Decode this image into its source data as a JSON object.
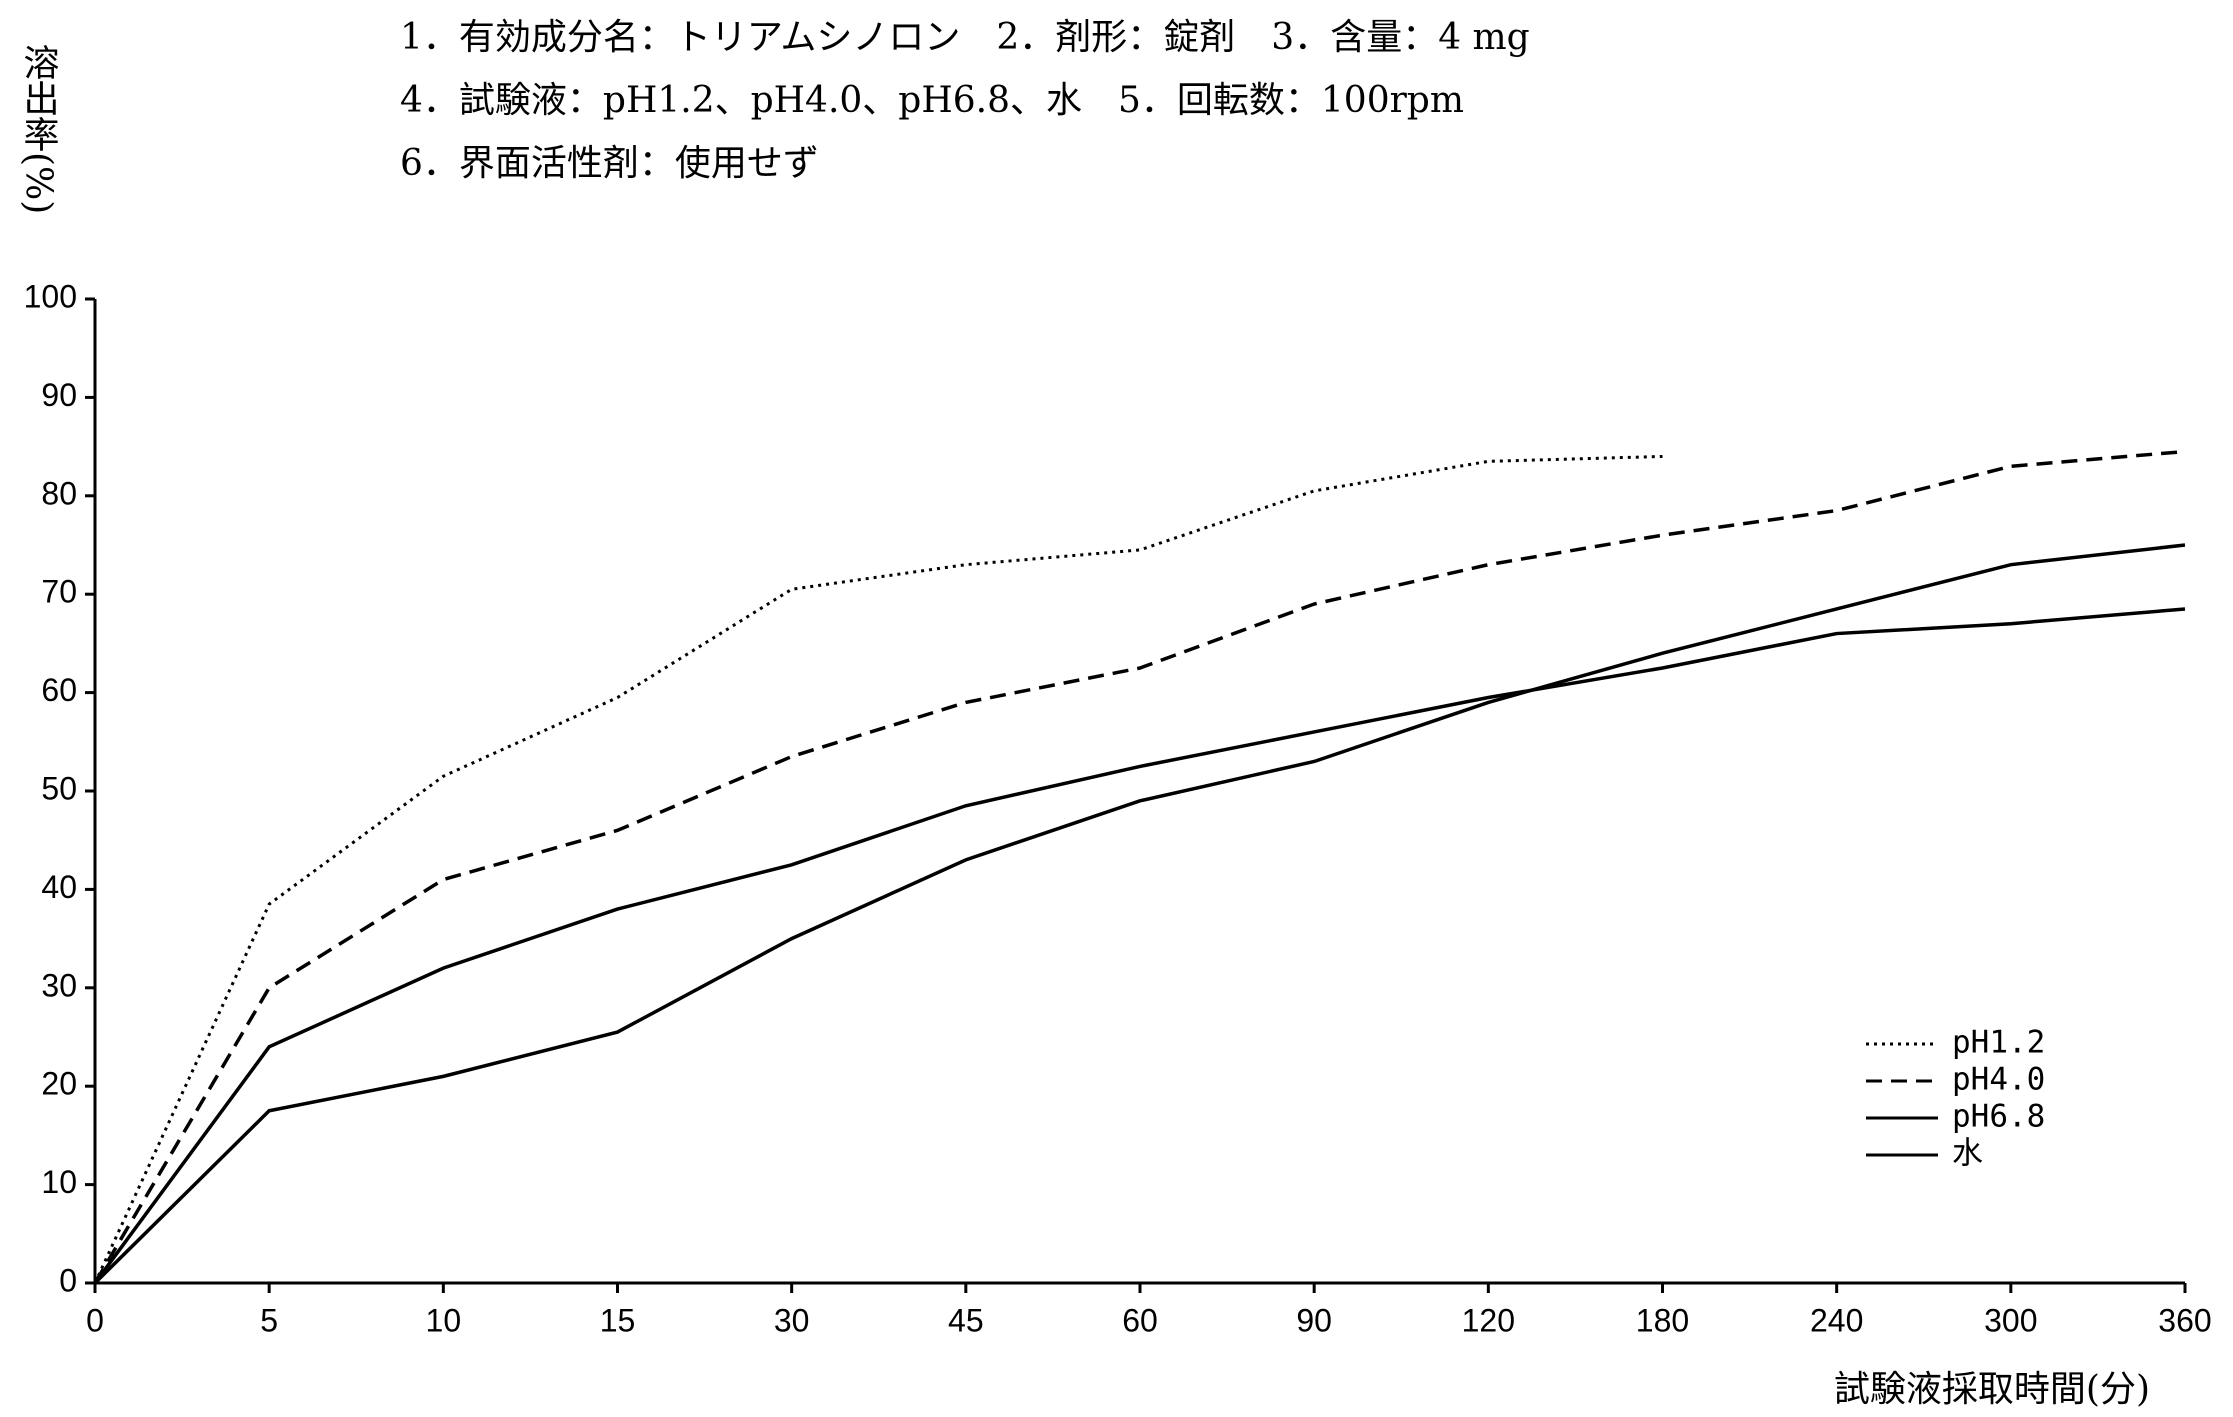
{
  "chart_data": {
    "type": "line",
    "title_lines": [
      "1．有効成分名：トリアムシノロン　2．剤形：錠剤　3．含量：4 mg",
      "4．試験液：pH1.2、pH4.0、pH6.8、水　5．回転数：100rpm",
      "6．界面活性剤：使用せず"
    ],
    "y_label": "溶出率(%)",
    "x_label": "試験液採取時間(分)",
    "categories": [
      "0",
      "5",
      "10",
      "15",
      "30",
      "45",
      "60",
      "90",
      "120",
      "180",
      "240",
      "300",
      "360"
    ],
    "series": [
      {
        "name": "pH1.2",
        "color": "#000000",
        "style": "dotted",
        "values": [
          0,
          38.5,
          51.5,
          59.5,
          70.5,
          73,
          74.5,
          80.5,
          83.5,
          84,
          null,
          null,
          null
        ]
      },
      {
        "name": "pH4.0",
        "color": "#000000",
        "style": "dashed",
        "values": [
          0,
          30,
          41,
          46,
          53.5,
          59,
          62.5,
          69,
          73,
          76,
          78.5,
          83,
          84.5
        ]
      },
      {
        "name": "pH6.8",
        "color": "#000000",
        "style": "solid",
        "values": [
          0,
          24,
          32,
          38,
          42.5,
          48.5,
          52.5,
          56,
          59.5,
          62.5,
          66,
          67,
          68.5
        ]
      },
      {
        "name": "水",
        "color": "#000000",
        "style": "solid",
        "values": [
          0,
          17.5,
          21,
          25.5,
          35,
          43,
          49,
          53,
          59,
          64,
          68.5,
          73,
          75
        ]
      }
    ],
    "ylim": [
      0,
      100
    ],
    "yticks": [
      0,
      10,
      20,
      30,
      40,
      50,
      60,
      70,
      80,
      90,
      100
    ],
    "grid": false,
    "legend": "lower right"
  }
}
